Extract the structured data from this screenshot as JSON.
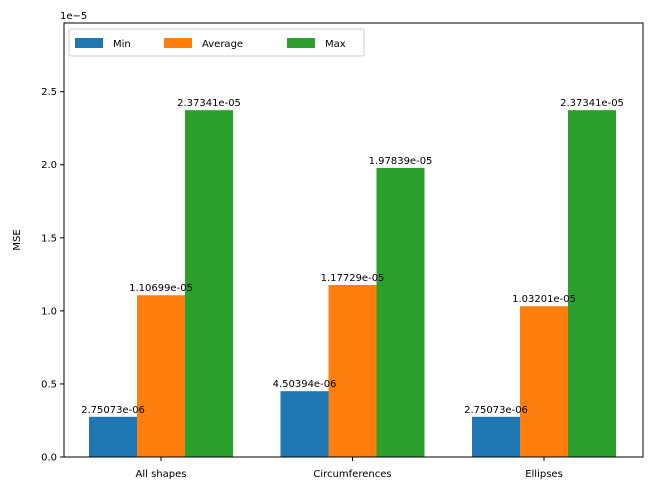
{
  "chart_data": {
    "type": "bar",
    "categories": [
      "All shapes",
      "Circumferences",
      "Ellipses"
    ],
    "series": [
      {
        "name": "Min",
        "color": "#1f77b4",
        "values": [
          2.75073e-06,
          4.50394e-06,
          2.75073e-06
        ],
        "labels": [
          "2.75073e-06",
          "4.50394e-06",
          "2.75073e-06"
        ]
      },
      {
        "name": "Average",
        "color": "#ff7f0e",
        "values": [
          1.10699e-05,
          1.17729e-05,
          1.03201e-05
        ],
        "labels": [
          "1.10699e-05",
          "1.17729e-05",
          "1.03201e-05"
        ]
      },
      {
        "name": "Max",
        "color": "#2ca02c",
        "values": [
          2.37341e-05,
          1.97839e-05,
          2.37341e-05
        ],
        "labels": [
          "2.37341e-05",
          "1.97839e-05",
          "2.37341e-05"
        ]
      }
    ],
    "ylabel": "MSE",
    "xlabel": "",
    "ylim": [
      0,
      2.97e-05
    ],
    "yticks": [
      0,
      5e-06,
      1e-05,
      1.5e-05,
      2e-05,
      2.5e-05
    ],
    "ytick_labels": [
      "0.0",
      "0.5",
      "1.0",
      "1.5",
      "2.0",
      "2.5"
    ],
    "y_offset_label": "1e−5",
    "legend": {
      "placement": "top-left",
      "columns": 3
    },
    "grid": false
  }
}
